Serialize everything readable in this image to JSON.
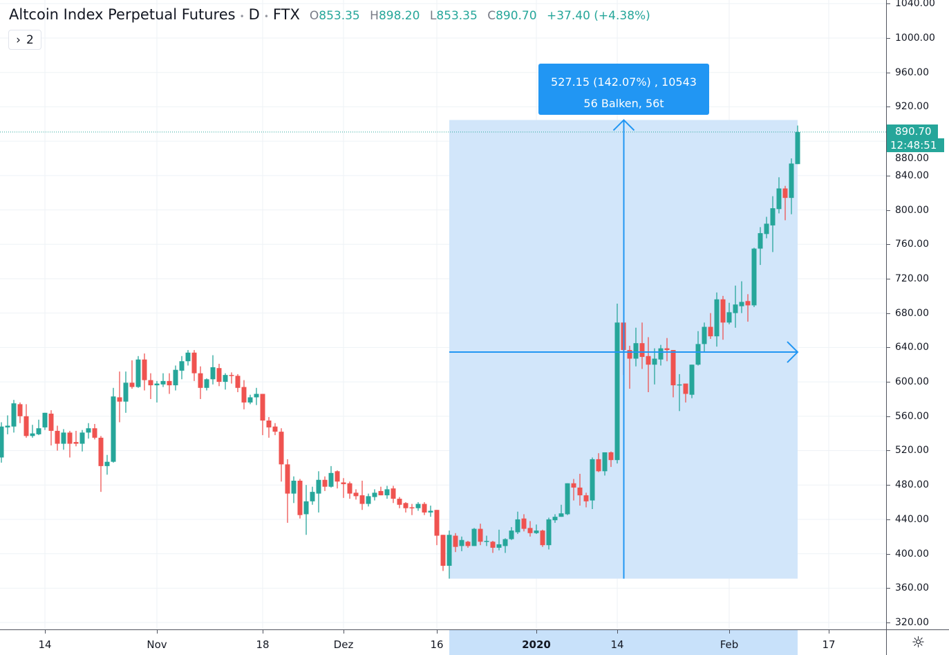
{
  "header": {
    "symbol_title": "Altcoin Index Perpetual Futures",
    "interval": "D",
    "exchange": "FTX",
    "open_key": "O",
    "open": "853.35",
    "high_key": "H",
    "high": "898.20",
    "low_key": "L",
    "low": "853.35",
    "close_key": "C",
    "close": "890.70",
    "change": "+37.40 (+4.38%)",
    "indicator_toggle_label": "2",
    "separator": "•"
  },
  "price_axis": {
    "labels": [
      "1040.00",
      "1000.00",
      "960.00",
      "920.00",
      "880.00",
      "840.00",
      "800.00",
      "760.00",
      "720.00",
      "680.00",
      "640.00",
      "600.00",
      "560.00",
      "520.00",
      "480.00",
      "440.00",
      "400.00",
      "360.00",
      "320.00"
    ],
    "last_price": "890.70",
    "countdown": "12:48:51",
    "settings_icon": "gear-icon"
  },
  "measure": {
    "line1": "527.15 (142.07%) , 10543",
    "line2": "56 Balken, 56t",
    "from_bar": 72,
    "to_bar": 128,
    "low": 371.05,
    "high": 898.2
  },
  "colors": {
    "up": "#26a69a",
    "down": "#ef5350",
    "measure": "#2196f3",
    "measure_fill": "#d2e6fa",
    "grid": "#eef2f6"
  },
  "chart_data": {
    "type": "candlestick",
    "title": "Altcoin Index Perpetual Futures · D · FTX",
    "ylim": [
      315,
      1045
    ],
    "yticks": [
      1040,
      1000,
      960,
      920,
      880,
      840,
      800,
      760,
      720,
      680,
      640,
      600,
      560,
      520,
      480,
      440,
      400,
      360,
      320
    ],
    "xlim_bars": [
      -0.2,
      142
    ],
    "x_ticks": [
      {
        "bar": 7,
        "label": "14"
      },
      {
        "bar": 25,
        "label": "Nov"
      },
      {
        "bar": 42,
        "label": "18"
      },
      {
        "bar": 55,
        "label": "Dez"
      },
      {
        "bar": 70,
        "label": "16"
      },
      {
        "bar": 86,
        "label": "2020",
        "bold": true
      },
      {
        "bar": 99,
        "label": "14"
      },
      {
        "bar": 117,
        "label": "Feb"
      },
      {
        "bar": 133,
        "label": "17"
      }
    ],
    "ohlc": [
      [
        512,
        553,
        506,
        548
      ],
      [
        547,
        561,
        539,
        549
      ],
      [
        548,
        579,
        541,
        575
      ],
      [
        574,
        576,
        552,
        560
      ],
      [
        560,
        574,
        535,
        537
      ],
      [
        537,
        550,
        535,
        540
      ],
      [
        539,
        556,
        538,
        546
      ],
      [
        547,
        564,
        544,
        564
      ],
      [
        563,
        567,
        526,
        543
      ],
      [
        543,
        549,
        520,
        528
      ],
      [
        528,
        545,
        521,
        541
      ],
      [
        541,
        543,
        512,
        528
      ],
      [
        530,
        543,
        525,
        528
      ],
      [
        528,
        544,
        519,
        541
      ],
      [
        541,
        552,
        534,
        546
      ],
      [
        546,
        551,
        533,
        535
      ],
      [
        535,
        537,
        472,
        502
      ],
      [
        502,
        515,
        492,
        507
      ],
      [
        507,
        593,
        506,
        583
      ],
      [
        582,
        612,
        553,
        577
      ],
      [
        577,
        612,
        564,
        599
      ],
      [
        599,
        625,
        592,
        594
      ],
      [
        594,
        630,
        593,
        626
      ],
      [
        626,
        633,
        590,
        602
      ],
      [
        602,
        610,
        580,
        596
      ],
      [
        596,
        601,
        576,
        598
      ],
      [
        597,
        610,
        594,
        601
      ],
      [
        601,
        610,
        586,
        596
      ],
      [
        596,
        619,
        590,
        614
      ],
      [
        613,
        630,
        603,
        624
      ],
      [
        624,
        637,
        619,
        634
      ],
      [
        634,
        637,
        601,
        610
      ],
      [
        610,
        618,
        580,
        593
      ],
      [
        593,
        604,
        590,
        603
      ],
      [
        603,
        631,
        597,
        617
      ],
      [
        616,
        621,
        595,
        600
      ],
      [
        600,
        610,
        591,
        608
      ],
      [
        608,
        611,
        598,
        607
      ],
      [
        607,
        609,
        588,
        593
      ],
      [
        594,
        602,
        568,
        576
      ],
      [
        576,
        585,
        574,
        582
      ],
      [
        582,
        593,
        573,
        586
      ],
      [
        586,
        586,
        538,
        555
      ],
      [
        555,
        559,
        535,
        547
      ],
      [
        548,
        552,
        538,
        542
      ],
      [
        542,
        546,
        484,
        504
      ],
      [
        504,
        510,
        436,
        470
      ],
      [
        470,
        490,
        459,
        485
      ],
      [
        485,
        487,
        441,
        445
      ],
      [
        446,
        480,
        422,
        461
      ],
      [
        461,
        478,
        457,
        472
      ],
      [
        470,
        496,
        448,
        486
      ],
      [
        486,
        490,
        473,
        478
      ],
      [
        478,
        502,
        477,
        494
      ],
      [
        496,
        497,
        476,
        484
      ],
      [
        483,
        488,
        465,
        481
      ],
      [
        482,
        484,
        464,
        470
      ],
      [
        471,
        475,
        463,
        467
      ],
      [
        468,
        485,
        451,
        458
      ],
      [
        458,
        470,
        455,
        467
      ],
      [
        466,
        475,
        462,
        471
      ],
      [
        473,
        478,
        468,
        468
      ],
      [
        468,
        479,
        464,
        475
      ],
      [
        476,
        479,
        459,
        464
      ],
      [
        464,
        466,
        453,
        457
      ],
      [
        459,
        460,
        448,
        453
      ],
      [
        454,
        458,
        445,
        453
      ],
      [
        453,
        460,
        450,
        458
      ],
      [
        458,
        460,
        445,
        448
      ],
      [
        448,
        456,
        443,
        450
      ],
      [
        451,
        451,
        410,
        421
      ],
      [
        422,
        422,
        380,
        386
      ],
      [
        386,
        427,
        371.05,
        422
      ],
      [
        421,
        424,
        402,
        408
      ],
      [
        409,
        420,
        403,
        416
      ],
      [
        414,
        415,
        407,
        409
      ],
      [
        409,
        430,
        409,
        429
      ],
      [
        429,
        435,
        410,
        414
      ],
      [
        414,
        421,
        409,
        415
      ],
      [
        414,
        415,
        401,
        407
      ],
      [
        407,
        428,
        404,
        411
      ],
      [
        409,
        418,
        401,
        417
      ],
      [
        417,
        431,
        416,
        427
      ],
      [
        425,
        449,
        423,
        440
      ],
      [
        441,
        446,
        426,
        429
      ],
      [
        430,
        438,
        420,
        424
      ],
      [
        424,
        434,
        423,
        427
      ],
      [
        427,
        428,
        408,
        410
      ],
      [
        410,
        442,
        405,
        440
      ],
      [
        439,
        446,
        436,
        443
      ],
      [
        443,
        457,
        443,
        447
      ],
      [
        446,
        482,
        445,
        482
      ],
      [
        482,
        487,
        462,
        477
      ],
      [
        477,
        493,
        456,
        468
      ],
      [
        468,
        471,
        454,
        461
      ],
      [
        462,
        512,
        452,
        510
      ],
      [
        510,
        517,
        495,
        496
      ],
      [
        496,
        518,
        491,
        518
      ],
      [
        518,
        519,
        501,
        509
      ],
      [
        509,
        691,
        505,
        669
      ],
      [
        669,
        669,
        608,
        637
      ],
      [
        637,
        642,
        592,
        627
      ],
      [
        627,
        663,
        618,
        645
      ],
      [
        645,
        669,
        615,
        629
      ],
      [
        630,
        652,
        588,
        620
      ],
      [
        620,
        639,
        597,
        627
      ],
      [
        626,
        643,
        619,
        639
      ],
      [
        639,
        651,
        624,
        637
      ],
      [
        637,
        637,
        582,
        596
      ],
      [
        596,
        609,
        566,
        597
      ],
      [
        598,
        598,
        576,
        586
      ],
      [
        585,
        620,
        581,
        620
      ],
      [
        620,
        659,
        619,
        644
      ],
      [
        644,
        669,
        635,
        664
      ],
      [
        664,
        680,
        650,
        653
      ],
      [
        653,
        704,
        641,
        696
      ],
      [
        696,
        700,
        649,
        669
      ],
      [
        669,
        692,
        667,
        681
      ],
      [
        680,
        712,
        663,
        690
      ],
      [
        688,
        717,
        680,
        693
      ],
      [
        694,
        702,
        670,
        689
      ],
      [
        689,
        756,
        687,
        755
      ],
      [
        755,
        780,
        736,
        773
      ],
      [
        772,
        792,
        767,
        784
      ],
      [
        782,
        816,
        751,
        802
      ],
      [
        801,
        838,
        796,
        825
      ],
      [
        825,
        828,
        788,
        814
      ],
      [
        814,
        860,
        795,
        854
      ],
      [
        853.35,
        898.2,
        853.35,
        890.7
      ]
    ]
  }
}
